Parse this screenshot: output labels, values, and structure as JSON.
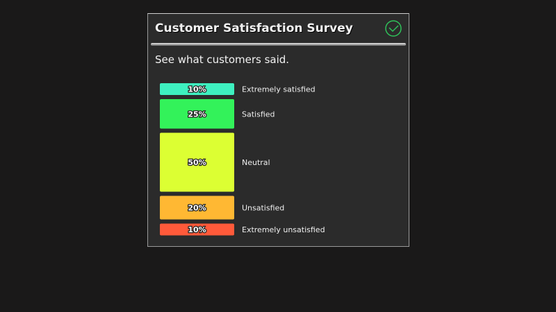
{
  "chart_data": {
    "type": "bar",
    "title": "Customer Satisfaction Survey",
    "subtitle": "See what customers said.",
    "categories": [
      "Extremely satisfied",
      "Satisfied",
      "Neutral",
      "Unsatisfied",
      "Extremely unsatisfied"
    ],
    "values": [
      10,
      25,
      50,
      20,
      10
    ],
    "value_labels": [
      "10%",
      "25%",
      "50%",
      "20%",
      "10%"
    ],
    "colors": [
      "#3ef0c0",
      "#33f25a",
      "#dcff33",
      "#ffb833",
      "#ff5a3a"
    ]
  }
}
